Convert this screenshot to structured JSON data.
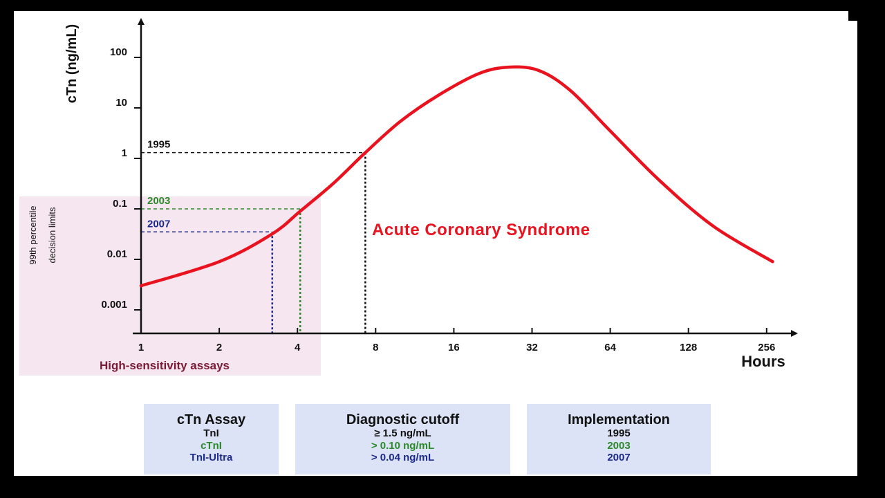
{
  "chart_data": {
    "type": "line",
    "x_axis": {
      "label": "Hours",
      "scale": "log2",
      "ticks": [
        1,
        2,
        4,
        8,
        16,
        32,
        64,
        128,
        256
      ],
      "range": [
        1,
        300
      ]
    },
    "y_axis": {
      "label": "cTn (ng/mL)",
      "scale": "log10",
      "ticks": [
        {
          "value": 0.001,
          "label": "0.001"
        },
        {
          "value": 0.01,
          "label": "0.01"
        },
        {
          "value": 0.1,
          "label": "0.1"
        },
        {
          "value": 1,
          "label": "1"
        },
        {
          "value": 10,
          "label": "10"
        },
        {
          "value": 100,
          "label": "100"
        }
      ]
    },
    "series": [
      {
        "name": "Acute Coronary Syndrome",
        "color": "#e8131f",
        "points": [
          {
            "x": 1,
            "y": 0.003
          },
          {
            "x": 2,
            "y": 0.009
          },
          {
            "x": 3.2,
            "y": 0.032
          },
          {
            "x": 4.1,
            "y": 0.09
          },
          {
            "x": 5.5,
            "y": 0.32
          },
          {
            "x": 7.3,
            "y": 1.3
          },
          {
            "x": 10,
            "y": 5.5
          },
          {
            "x": 14,
            "y": 18
          },
          {
            "x": 20,
            "y": 48
          },
          {
            "x": 26,
            "y": 64
          },
          {
            "x": 34,
            "y": 55
          },
          {
            "x": 45,
            "y": 22
          },
          {
            "x": 64,
            "y": 3.5
          },
          {
            "x": 100,
            "y": 0.35
          },
          {
            "x": 160,
            "y": 0.045
          },
          {
            "x": 270,
            "y": 0.009
          }
        ]
      }
    ],
    "annotations": [
      {
        "label": "1995",
        "x": 7.3,
        "y": 1.3,
        "color": "#111111"
      },
      {
        "label": "2003",
        "x": 4.1,
        "y": 0.1,
        "color": "#2a8a2a"
      },
      {
        "label": "2007",
        "x": 3.2,
        "y": 0.035,
        "color": "#1c2a8a"
      }
    ],
    "curve_label": "Acute Coronary Syndrome",
    "shaded_region": {
      "label": "High-sensitivity assays",
      "side_label_lines": [
        "99th percentile",
        "decision limits"
      ],
      "x_max": 4.6,
      "color": "#f6e6f0"
    },
    "grid": false
  },
  "table": {
    "columns": [
      {
        "header": "cTn Assay",
        "rows": [
          "TnI",
          "cTnI",
          "TnI-Ultra"
        ]
      },
      {
        "header": "Diagnostic cutoff",
        "rows": [
          "≥ 1.5 ng/mL",
          "> 0.10 ng/mL",
          "> 0.04 ng/mL"
        ]
      },
      {
        "header": "Implementation",
        "rows": [
          "1995",
          "2003",
          "2007"
        ]
      }
    ],
    "row_colors": [
      "#111111",
      "#2a8a2a",
      "#1c2a8a"
    ],
    "background": "#dde3f6"
  }
}
